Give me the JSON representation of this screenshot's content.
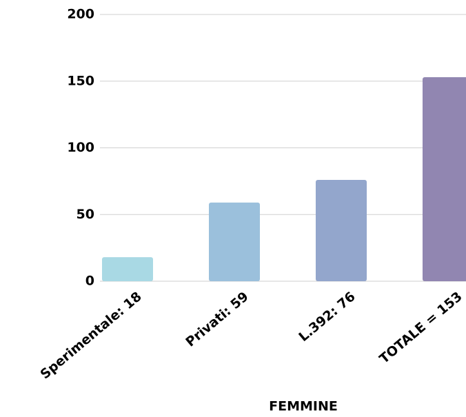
{
  "chart_data": {
    "type": "bar",
    "categories": [
      "Sperimentale: 18",
      "Privati: 59",
      "L.392: 76",
      "TOTALE = 153"
    ],
    "values": [
      18,
      59,
      76,
      153
    ],
    "colors": [
      "#a9d9e4",
      "#9bc0dc",
      "#93a6cc",
      "#9186b1"
    ],
    "x_label": "FEMMINE",
    "ylim": [
      0,
      200
    ],
    "yticks": [
      0,
      50,
      100,
      150,
      200
    ],
    "grid": true
  }
}
